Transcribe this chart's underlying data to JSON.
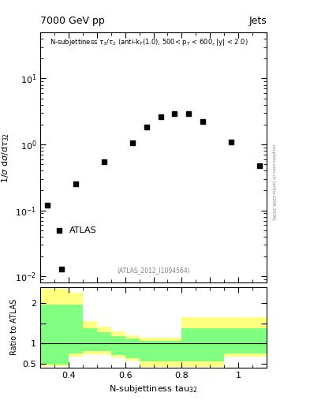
{
  "title_left": "7000 GeV pp",
  "title_right": "Jets",
  "atlas_ref": "(ATLAS_2012_I1094564)",
  "ylabel_ratio": "Ratio to ATLAS",
  "right_label": "mcplots.cern.ch [arXiv:1306.3436]",
  "data_x": [
    0.325,
    0.375,
    0.425,
    0.525,
    0.625,
    0.675,
    0.725,
    0.775,
    0.825,
    0.875,
    0.975,
    1.075
  ],
  "data_y": [
    0.12,
    0.013,
    0.25,
    0.55,
    1.05,
    1.85,
    2.6,
    2.9,
    2.9,
    2.2,
    1.1,
    0.47
  ],
  "xlim": [
    0.3,
    1.1
  ],
  "ylim_main": [
    0.008,
    50
  ],
  "ylim_ratio": [
    0.4,
    2.4
  ],
  "bin_edges": [
    0.3,
    0.35,
    0.4,
    0.45,
    0.5,
    0.55,
    0.6,
    0.65,
    0.7,
    0.75,
    0.8,
    0.85,
    0.9,
    0.95,
    1.0,
    1.05,
    1.1
  ],
  "yellow_upper": [
    2.35,
    2.35,
    2.25,
    1.55,
    1.42,
    1.3,
    1.2,
    1.15,
    1.15,
    1.15,
    1.65,
    1.65,
    1.65,
    1.65,
    1.65,
    1.65
  ],
  "yellow_lower": [
    0.43,
    0.43,
    0.68,
    0.73,
    0.73,
    0.65,
    0.57,
    0.42,
    0.42,
    0.42,
    0.42,
    0.42,
    0.42,
    0.68,
    0.68,
    0.68
  ],
  "green_upper": [
    1.97,
    1.97,
    1.97,
    1.37,
    1.28,
    1.18,
    1.12,
    1.07,
    1.07,
    1.07,
    1.37,
    1.37,
    1.37,
    1.37,
    1.37,
    1.37
  ],
  "green_lower": [
    0.48,
    0.48,
    0.75,
    0.8,
    0.8,
    0.72,
    0.63,
    0.55,
    0.55,
    0.55,
    0.55,
    0.55,
    0.55,
    0.75,
    0.75,
    0.75
  ],
  "yellow_color": "#ffff80",
  "green_color": "#80ff80",
  "marker_color": "black",
  "marker_size": 5
}
